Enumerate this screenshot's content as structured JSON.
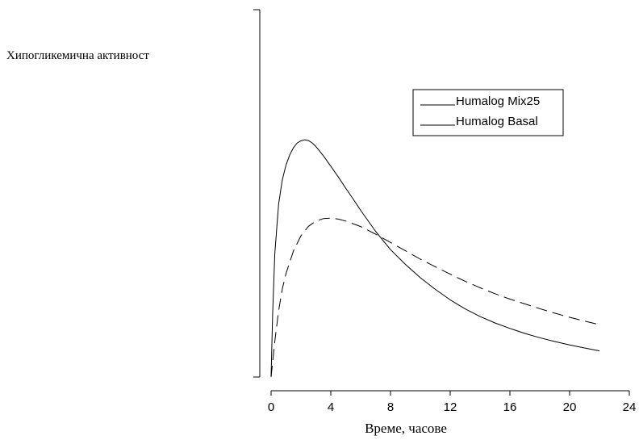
{
  "chart_data": {
    "type": "line",
    "title": "",
    "xlabel": "Време, часове",
    "ylabel": "Хипогликемична активност",
    "xlim": [
      0,
      24
    ],
    "x_ticks": [
      0,
      4,
      8,
      12,
      16,
      20,
      24
    ],
    "ylim": [
      0,
      1.0
    ],
    "y_ticks_labeled": false,
    "grid": false,
    "legend_position": "top-right",
    "series": [
      {
        "name": "Humalog Mix25",
        "line_style": "solid",
        "color": "#000000",
        "x": [
          0,
          0.1,
          0.25,
          0.5,
          0.75,
          1,
          1.25,
          1.5,
          1.75,
          2,
          2.25,
          2.5,
          2.75,
          3,
          3.5,
          4,
          4.5,
          5,
          5.5,
          6,
          7,
          8,
          9,
          10,
          11,
          12,
          13,
          14,
          15,
          16,
          17,
          18,
          19,
          20,
          21,
          22
        ],
        "y": [
          0,
          0.263,
          0.518,
          0.725,
          0.828,
          0.89,
          0.933,
          0.963,
          0.983,
          0.992,
          0.996,
          0.993,
          0.983,
          0.968,
          0.929,
          0.885,
          0.84,
          0.793,
          0.747,
          0.7,
          0.612,
          0.535,
          0.473,
          0.417,
          0.368,
          0.324,
          0.286,
          0.254,
          0.227,
          0.204,
          0.183,
          0.165,
          0.149,
          0.135,
          0.122,
          0.11
        ]
      },
      {
        "name": "Humalog Basal",
        "line_style": "dashed",
        "color": "#000000",
        "x": [
          0,
          0.25,
          0.5,
          0.75,
          1,
          1.5,
          2,
          2.5,
          3,
          3.5,
          4,
          4.5,
          5,
          6,
          7,
          8,
          9,
          10,
          11,
          12,
          13,
          14,
          15,
          16,
          17,
          18,
          19,
          20,
          21,
          22
        ],
        "y": [
          0,
          0.15,
          0.278,
          0.37,
          0.435,
          0.53,
          0.593,
          0.633,
          0.655,
          0.665,
          0.667,
          0.663,
          0.655,
          0.632,
          0.6,
          0.565,
          0.53,
          0.495,
          0.463,
          0.432,
          0.402,
          0.375,
          0.35,
          0.327,
          0.307,
          0.287,
          0.268,
          0.251,
          0.235,
          0.22
        ]
      }
    ]
  }
}
